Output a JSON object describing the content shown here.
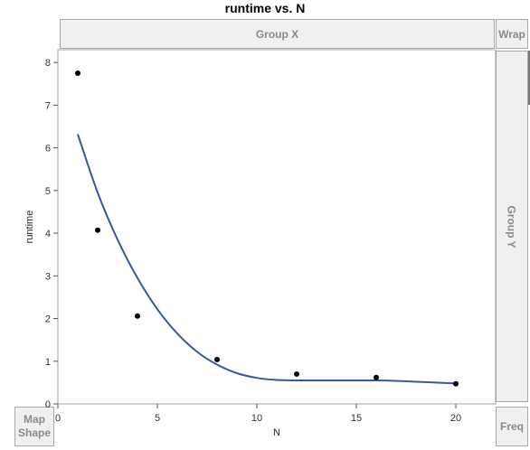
{
  "window": {
    "title": "runtime vs. N"
  },
  "drop_zones": {
    "group_x": "Group X",
    "wrap": "Wrap",
    "group_y": "Group Y",
    "map_shape_line1": "Map",
    "map_shape_line2": "Shape",
    "freq": "Freq"
  },
  "colors": {
    "smoother": "#3a56a0",
    "points": "#000000",
    "zone_bg": "#f0f0f0",
    "zone_text": "#8a8a8a"
  },
  "chart_data": {
    "type": "scatter",
    "title": "runtime vs. N",
    "xlabel": "N",
    "ylabel": "runtime",
    "xlim": [
      0,
      22
    ],
    "ylim": [
      0,
      8.3
    ],
    "x_ticks": [
      0,
      5,
      10,
      15,
      20
    ],
    "y_ticks": [
      0,
      1,
      2,
      3,
      4,
      5,
      6,
      7,
      8
    ],
    "grid": false,
    "points": [
      {
        "x": 1,
        "y": 7.75
      },
      {
        "x": 2,
        "y": 4.07
      },
      {
        "x": 4,
        "y": 2.06
      },
      {
        "x": 8,
        "y": 1.04
      },
      {
        "x": 12,
        "y": 0.7
      },
      {
        "x": 16,
        "y": 0.62
      },
      {
        "x": 20,
        "y": 0.47
      }
    ],
    "smoother": {
      "x": [
        1,
        2,
        3,
        4,
        5,
        6,
        7,
        8,
        9,
        10,
        11,
        12,
        13,
        14,
        15,
        16,
        17,
        18,
        19,
        20
      ],
      "y": [
        6.32,
        4.95,
        3.85,
        2.95,
        2.22,
        1.65,
        1.22,
        0.92,
        0.72,
        0.61,
        0.56,
        0.55,
        0.55,
        0.55,
        0.55,
        0.55,
        0.54,
        0.52,
        0.5,
        0.48
      ]
    }
  }
}
